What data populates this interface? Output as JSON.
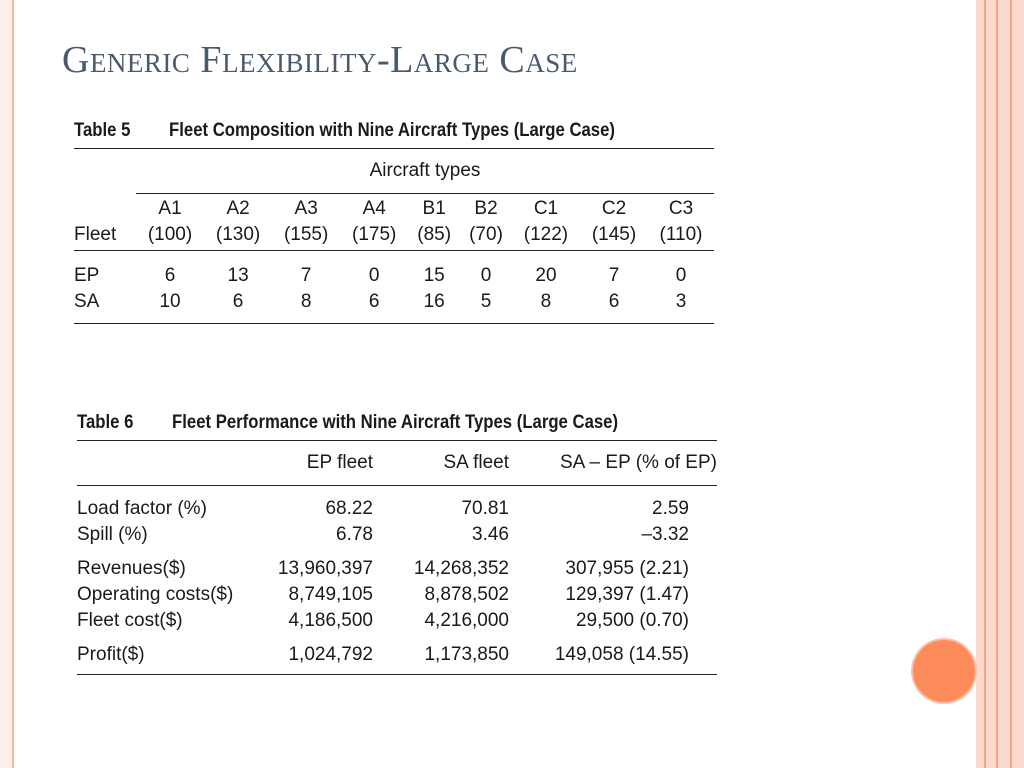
{
  "title": "Generic Flexibility-Large Case",
  "table5": {
    "number": "Table 5",
    "caption": "Fleet Composition with Nine Aircraft Types (Large Case)",
    "group_header": "Aircraft types",
    "row_header": "Fleet",
    "columns": [
      {
        "code": "A1",
        "capacity": "(100)"
      },
      {
        "code": "A2",
        "capacity": "(130)"
      },
      {
        "code": "A3",
        "capacity": "(155)"
      },
      {
        "code": "A4",
        "capacity": "(175)"
      },
      {
        "code": "B1",
        "capacity": "(85)"
      },
      {
        "code": "B2",
        "capacity": "(70)"
      },
      {
        "code": "C1",
        "capacity": "(122)"
      },
      {
        "code": "C2",
        "capacity": "(145)"
      },
      {
        "code": "C3",
        "capacity": "(110)"
      }
    ],
    "rows": [
      {
        "label": "EP",
        "values": [
          "6",
          "13",
          "7",
          "0",
          "15",
          "0",
          "20",
          "7",
          "0"
        ]
      },
      {
        "label": "SA",
        "values": [
          "10",
          "6",
          "8",
          "6",
          "16",
          "5",
          "8",
          "6",
          "3"
        ]
      }
    ]
  },
  "table6": {
    "number": "Table 6",
    "caption": "Fleet Performance with Nine Aircraft Types (Large Case)",
    "headers": [
      "",
      "EP fleet",
      "SA fleet",
      "SA – EP (% of EP)"
    ],
    "rows": [
      {
        "label": "Load factor (%)",
        "ep": "68.22",
        "sa": "70.81",
        "diff": "2.59"
      },
      {
        "label": "Spill (%)",
        "ep": "6.78",
        "sa": "3.46",
        "diff": "–3.32"
      },
      {
        "label": "Revenues($)",
        "ep": "13,960,397",
        "sa": "14,268,352",
        "diff": "307,955 (2.21)"
      },
      {
        "label": "Operating costs($)",
        "ep": "8,749,105",
        "sa": "8,878,502",
        "diff": "129,397 (1.47)"
      },
      {
        "label": "Fleet cost($)",
        "ep": "4,186,500",
        "sa": "4,216,000",
        "diff": "29,500 (0.70)"
      },
      {
        "label": "Profit($)",
        "ep": "1,024,792",
        "sa": "1,173,850",
        "diff": "149,058 (14.55)"
      }
    ]
  },
  "colors": {
    "accent": "#fd8c5c",
    "title": "#4a5a6e",
    "frame": "#fbd9cc"
  }
}
